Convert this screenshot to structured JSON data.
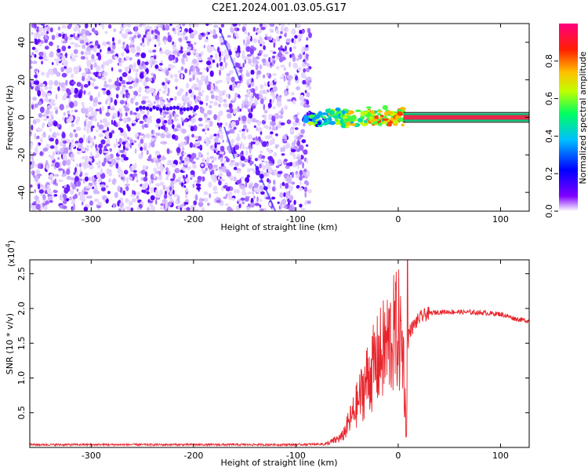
{
  "title": "C2E1.2024.001.03.05.G17",
  "chart_data": [
    {
      "type": "heatmap",
      "xlabel": "Height of straight line (km)",
      "ylabel": "Frequency (Hz)",
      "xlim": [
        -360,
        128
      ],
      "ylim": [
        -50,
        50
      ],
      "x_ticks": [
        -300,
        -200,
        -100,
        0,
        100
      ],
      "x_tick_labels": [
        "-300",
        "-200",
        "-100",
        "0",
        "100"
      ],
      "y_ticks": [
        40,
        20,
        0,
        -20,
        -40
      ],
      "y_tick_labels": [
        "40",
        "20",
        "0",
        "-20",
        "-40"
      ],
      "colorbar": {
        "label": "Normalized spectral amplitude",
        "range": [
          0,
          1
        ],
        "ticks": [
          0,
          0.2,
          0.4,
          0.6,
          0.8
        ],
        "tick_labels": [
          "0.0",
          "0.2",
          "0.4",
          "0.6",
          "0.8"
        ],
        "colors": [
          "#ffffff",
          "#8000ff",
          "#0000ff",
          "#00c0ff",
          "#00ff60",
          "#c0ff00",
          "#ffc000",
          "#ff2000",
          "#ff0080"
        ]
      },
      "features": {
        "noise_region_x": [
          -360,
          -90
        ],
        "signal_onset_x": -90,
        "signal_frequency": 0,
        "strong_line_start_x": 5,
        "strong_line_color": "#e8284a"
      }
    },
    {
      "type": "line",
      "xlabel": "Height of straight line (km)",
      "ylabel": "SNR (10 * v/v)",
      "yscale_label": "(x10",
      "yscale_exponent": "4",
      "xlim": [
        -360,
        128
      ],
      "ylim": [
        0,
        2.7
      ],
      "x_ticks": [
        -300,
        -200,
        -100,
        0,
        100
      ],
      "x_tick_labels": [
        "-300",
        "-200",
        "-100",
        "0",
        "100"
      ],
      "y_ticks": [
        0.5,
        1.0,
        1.5,
        2.0,
        2.5
      ],
      "y_tick_labels": [
        "0.5",
        "1.0",
        "1.5",
        "2.0",
        "2.5"
      ],
      "series": [
        {
          "color": "#e8242b",
          "x": [
            -360,
            -300,
            -200,
            -100,
            -70,
            -55,
            -45,
            -38,
            -30,
            -20,
            -12,
            -5,
            0,
            5,
            8,
            10,
            15,
            20,
            25,
            30,
            40,
            60,
            80,
            100,
            115,
            128
          ],
          "y": [
            0.04,
            0.04,
            0.04,
            0.04,
            0.05,
            0.15,
            0.45,
            0.7,
            1.0,
            1.25,
            1.45,
            1.6,
            1.7,
            1.35,
            0.1,
            1.65,
            1.75,
            1.85,
            1.9,
            1.93,
            1.95,
            1.95,
            1.94,
            1.92,
            1.85,
            1.82
          ]
        }
      ]
    }
  ]
}
